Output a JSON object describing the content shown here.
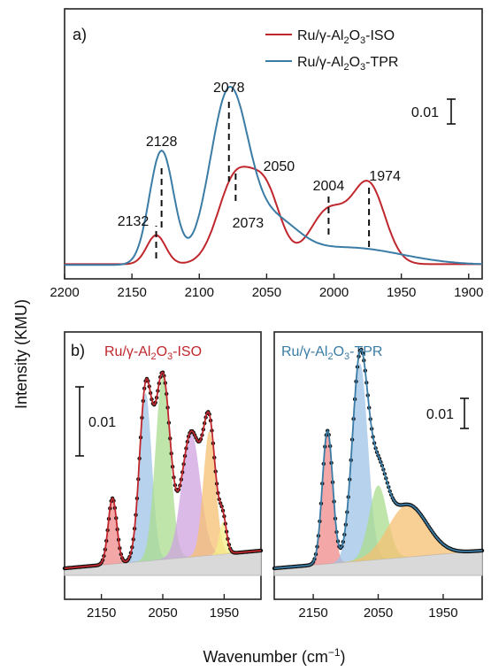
{
  "colors": {
    "iso": "#c0272d",
    "tpr": "#3a7ca5",
    "frame": "#222222"
  },
  "chart_data": [
    {
      "type": "line",
      "panel_label": "a)",
      "xlabel": "Wavenumber (cm⁻¹)",
      "ylabel": "Intensity (KMU)",
      "xlim": [
        2200,
        1890
      ],
      "x_inverted": true,
      "x_ticks": [
        2200,
        2150,
        2100,
        2050,
        2000,
        1950,
        1900
      ],
      "legend": {
        "position": "top-right"
      },
      "series": [
        {
          "name_html": "Ru/γ-Al<tspan font-size='11' dy='4'>2</tspan><tspan dy='-4'>O</tspan><tspan font-size='11' dy='4'>3</tspan><tspan dy='-4'>-ISO</tspan>",
          "name": "Ru/γ-Al2O3-ISO",
          "color": "#c0272d",
          "baseline": 0.0,
          "peaks": [
            {
              "center": 2132,
              "height": 0.0042,
              "width": 7
            },
            {
              "center": 2073,
              "height": 0.0125,
              "width": 13
            },
            {
              "center": 2050,
              "height": 0.0095,
              "width": 11
            },
            {
              "center": 2004,
              "height": 0.0078,
              "width": 14
            },
            {
              "center": 1974,
              "height": 0.0112,
              "width": 12
            }
          ]
        },
        {
          "name": "Ru/γ-Al2O3-TPR",
          "color": "#3a7ca5",
          "baseline": 0.0,
          "peaks": [
            {
              "center": 2128,
              "height": 0.0165,
              "width": 9
            },
            {
              "center": 2078,
              "height": 0.0245,
              "width": 14
            },
            {
              "center": 2045,
              "height": 0.0055,
              "width": 18
            },
            {
              "center": 1990,
              "height": 0.0025,
              "width": 40
            }
          ]
        }
      ],
      "annotations": [
        {
          "text": "2132",
          "x": 2132,
          "y": 0.0042
        },
        {
          "text": "2128",
          "x": 2128,
          "y": 0.0165
        },
        {
          "text": "2078",
          "x": 2078,
          "y": 0.0245
        },
        {
          "text": "2073",
          "x": 2073,
          "y": 0.0125
        },
        {
          "text": "2050",
          "x": 2050,
          "y": 0.0095
        },
        {
          "text": "2004",
          "x": 2004,
          "y": 0.0078
        },
        {
          "text": "1974",
          "x": 1974,
          "y": 0.0112
        }
      ],
      "scale_bar": {
        "label": "0.01",
        "value": 0.01
      }
    },
    {
      "type": "area",
      "panel_label": "b)",
      "title": "Ru/γ-Al2O3-ISO",
      "xlim": [
        2210,
        1890
      ],
      "x_inverted": true,
      "x_ticks": [
        2150,
        2050,
        1950
      ],
      "scale_bar": {
        "label": "0.01",
        "value": 0.01
      },
      "components": [
        {
          "center": 2132,
          "height": 0.0045,
          "width": 7,
          "color": "#f08a8a"
        },
        {
          "center": 2078,
          "height": 0.0115,
          "width": 10,
          "color": "#9ec3e6"
        },
        {
          "center": 2050,
          "height": 0.0125,
          "width": 12,
          "color": "#a9dc8e"
        },
        {
          "center": 2004,
          "height": 0.0085,
          "width": 15,
          "color": "#cfa3e0"
        },
        {
          "center": 1974,
          "height": 0.0085,
          "width": 10,
          "color": "#f5c073"
        },
        {
          "center": 1952,
          "height": 0.0022,
          "width": 6,
          "color": "#f3ef8a"
        }
      ],
      "fit_color": "#c0272d"
    },
    {
      "type": "area",
      "title": "Ru/γ-Al2O3-TPR",
      "xlim": [
        2210,
        1890
      ],
      "x_inverted": true,
      "x_ticks": [
        2150,
        2050,
        1950
      ],
      "scale_bar": {
        "label": "0.01",
        "value": 0.01
      },
      "components": [
        {
          "center": 2128,
          "height": 0.0158,
          "width": 8,
          "color": "#f08a8a"
        },
        {
          "center": 2078,
          "height": 0.0235,
          "width": 12,
          "color": "#9ec3e6"
        },
        {
          "center": 2050,
          "height": 0.0088,
          "width": 14,
          "color": "#a9dc8e"
        },
        {
          "center": 2005,
          "height": 0.0062,
          "width": 30,
          "color": "#f5c073"
        }
      ],
      "fit_color": "#3a7ca5"
    }
  ]
}
